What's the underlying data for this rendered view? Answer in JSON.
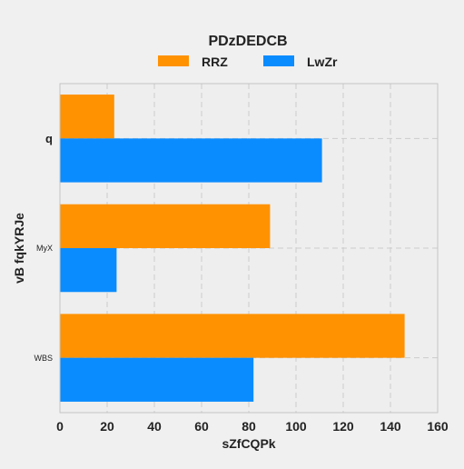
{
  "chart_data": {
    "type": "bar",
    "orientation": "horizontal",
    "title": "PDzDEDCB",
    "xlabel": "sZfCQPk",
    "ylabel": "vB fqkYRJe",
    "categories": [
      "q",
      "MyX",
      "WBS"
    ],
    "series": [
      {
        "name": "RRZ",
        "color": "#ff9200",
        "values": [
          23,
          89,
          146
        ]
      },
      {
        "name": "LwZr",
        "color": "#0a8cff",
        "values": [
          111,
          24,
          82
        ]
      }
    ],
    "xlim": [
      0,
      160
    ],
    "xticks": [
      "0",
      "20",
      "40",
      "60",
      "80",
      "100",
      "120",
      "140",
      "160"
    ],
    "grid": true,
    "legend_position": "top-center"
  }
}
